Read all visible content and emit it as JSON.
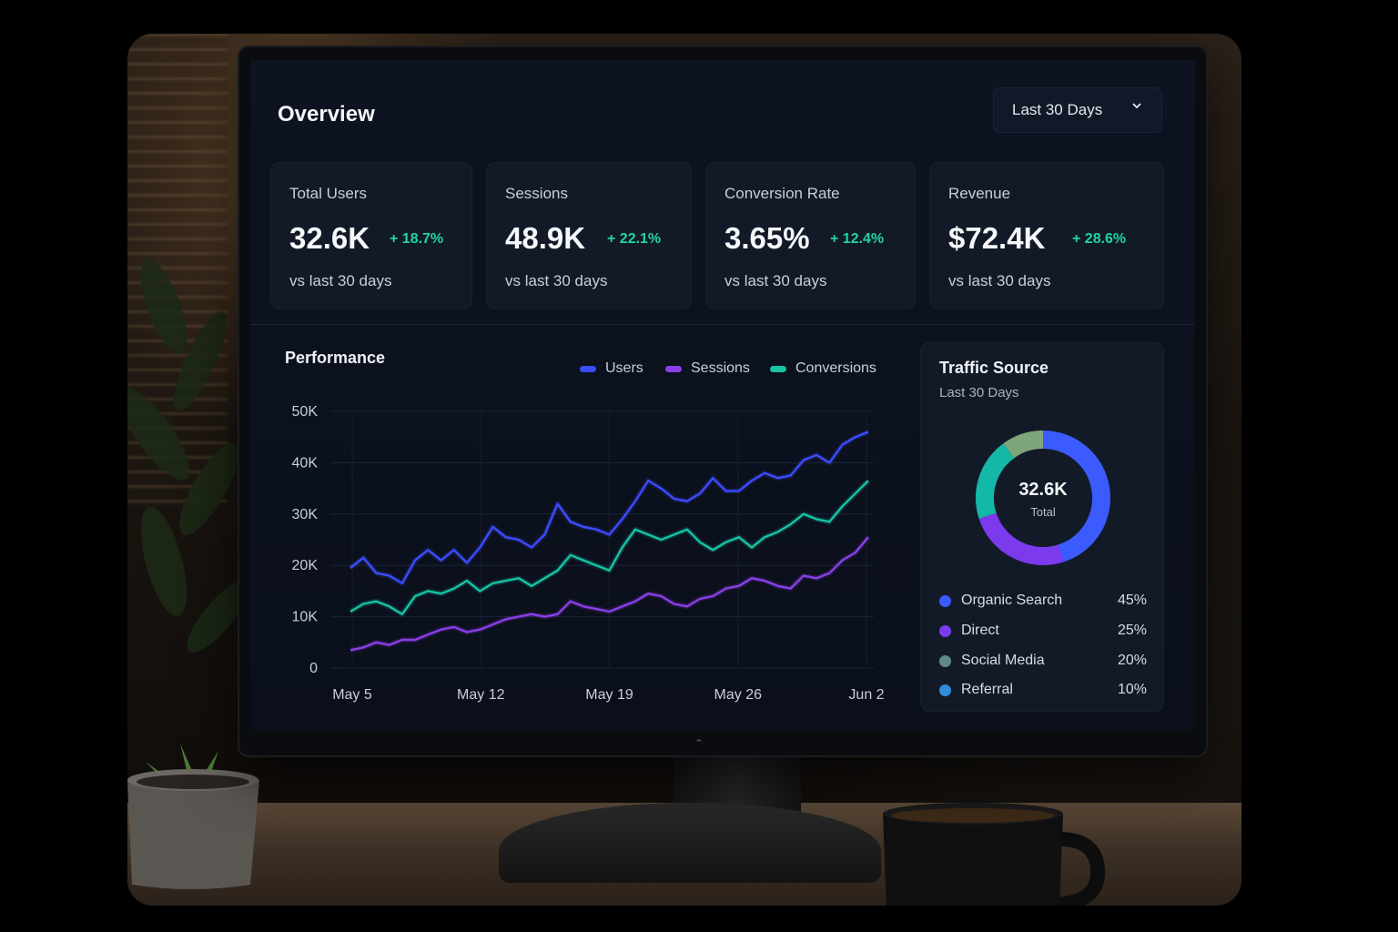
{
  "header": {
    "title": "Overview",
    "range_label": "Last 30 Days"
  },
  "kpis": [
    {
      "label": "Total Users",
      "value": "32.6K",
      "delta": "+ 18.7%",
      "sub": "vs last 30 days"
    },
    {
      "label": "Sessions",
      "value": "48.9K",
      "delta": "+ 22.1%",
      "sub": "vs last 30 days"
    },
    {
      "label": "Conversion Rate",
      "value": "3.65%",
      "delta": "+ 12.4%",
      "sub": "vs last 30 days"
    },
    {
      "label": "Revenue",
      "value": "$72.4K",
      "delta": "+ 28.6%",
      "sub": "vs last 30 days"
    }
  ],
  "performance": {
    "title": "Performance"
  },
  "traffic": {
    "title": "Traffic Source",
    "subtitle": "Last 30 Days",
    "total_value": "32.6K",
    "total_label": "Total",
    "sources": [
      {
        "name": "Organic Search",
        "pct": "45%",
        "value": 45,
        "color": "#3b5bff"
      },
      {
        "name": "Direct",
        "pct": "25%",
        "value": 25,
        "color": "#7c3aed"
      },
      {
        "name": "Social Media",
        "pct": "20%",
        "value": 20,
        "color": "#14b8a6"
      },
      {
        "name": "Referral",
        "pct": "10%",
        "value": 10,
        "color": "#7fa57a"
      }
    ]
  },
  "colors": {
    "accent_positive": "#22d3a6",
    "users": "#3b4cff",
    "sessions": "#8b3fe8",
    "conversions": "#16c3a6"
  },
  "chart_data": {
    "type": "line",
    "title": "Performance",
    "x_tick_labels": [
      "May 5",
      "May 12",
      "May 19",
      "May 26",
      "Jun 2"
    ],
    "y_tick_labels": [
      "0",
      "10K",
      "20K",
      "30K",
      "40K",
      "50K"
    ],
    "ylim": [
      0,
      50000
    ],
    "grid": true,
    "legend": "top-right",
    "series": [
      {
        "name": "Users",
        "color": "#3b4cff",
        "values": [
          19500,
          21500,
          18500,
          18000,
          16500,
          21000,
          23000,
          21000,
          23000,
          20500,
          23500,
          27500,
          25500,
          25000,
          23500,
          26000,
          32000,
          28500,
          27500,
          27000,
          26000,
          29000,
          32500,
          36500,
          35000,
          33000,
          32500,
          34000,
          37000,
          34500,
          34500,
          36500,
          38000,
          37000,
          37500,
          40500,
          41500,
          40000,
          43500,
          45000,
          46000
        ]
      },
      {
        "name": "Sessions",
        "color": "#8b3fe8",
        "values": [
          3500,
          4000,
          5000,
          4500,
          5500,
          5500,
          6500,
          7500,
          8000,
          7000,
          7500,
          8500,
          9500,
          10000,
          10500,
          10000,
          10500,
          13000,
          12000,
          11500,
          11000,
          12000,
          13000,
          14500,
          14000,
          12500,
          12000,
          13500,
          14000,
          15500,
          16000,
          17500,
          17000,
          16000,
          15500,
          18000,
          17500,
          18500,
          21000,
          22500,
          25500
        ]
      },
      {
        "name": "Conversions",
        "color": "#16c3a6",
        "values": [
          11000,
          12500,
          13000,
          12000,
          10500,
          14000,
          15000,
          14500,
          15500,
          17000,
          15000,
          16500,
          17000,
          17500,
          16000,
          17500,
          19000,
          22000,
          21000,
          20000,
          19000,
          23500,
          27000,
          26000,
          25000,
          26000,
          27000,
          24500,
          23000,
          24500,
          25500,
          23500,
          25500,
          26500,
          28000,
          30000,
          29000,
          28500,
          31500,
          34000,
          36500
        ]
      }
    ]
  }
}
